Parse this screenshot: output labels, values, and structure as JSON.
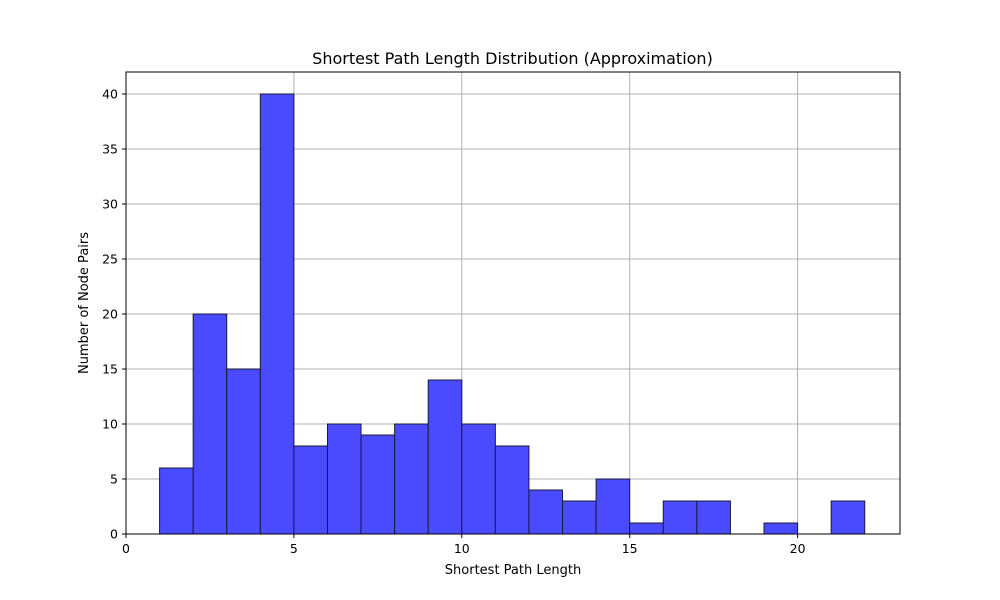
{
  "chart_data": {
    "type": "bar",
    "title": "Shortest Path Length Distribution (Approximation)",
    "xlabel": "Shortest Path Length",
    "ylabel": "Number of Node Pairs",
    "xlim": [
      0,
      23.05
    ],
    "ylim": [
      0,
      42
    ],
    "x_ticks": [
      0,
      5,
      10,
      15,
      20
    ],
    "y_ticks": [
      0,
      5,
      10,
      15,
      20,
      25,
      30,
      35,
      40
    ],
    "grid": true,
    "bar_color": "#4a4aff",
    "bar_edge_color": "#1a1a3a",
    "bins": [
      {
        "start": 1,
        "end": 2,
        "count": 6
      },
      {
        "start": 2,
        "end": 3,
        "count": 20
      },
      {
        "start": 3,
        "end": 4,
        "count": 15
      },
      {
        "start": 4,
        "end": 5,
        "count": 40
      },
      {
        "start": 5,
        "end": 6,
        "count": 8
      },
      {
        "start": 6,
        "end": 7,
        "count": 10
      },
      {
        "start": 7,
        "end": 8,
        "count": 9
      },
      {
        "start": 8,
        "end": 9,
        "count": 10
      },
      {
        "start": 9,
        "end": 10,
        "count": 14
      },
      {
        "start": 10,
        "end": 11,
        "count": 10
      },
      {
        "start": 11,
        "end": 12,
        "count": 8
      },
      {
        "start": 12,
        "end": 13,
        "count": 4
      },
      {
        "start": 13,
        "end": 14,
        "count": 3
      },
      {
        "start": 14,
        "end": 15,
        "count": 5
      },
      {
        "start": 15,
        "end": 16,
        "count": 1
      },
      {
        "start": 16,
        "end": 17,
        "count": 3
      },
      {
        "start": 17,
        "end": 18,
        "count": 3
      },
      {
        "start": 18,
        "end": 19,
        "count": 0
      },
      {
        "start": 19,
        "end": 20,
        "count": 1
      },
      {
        "start": 20,
        "end": 21,
        "count": 0
      },
      {
        "start": 21,
        "end": 22,
        "count": 3
      }
    ]
  }
}
